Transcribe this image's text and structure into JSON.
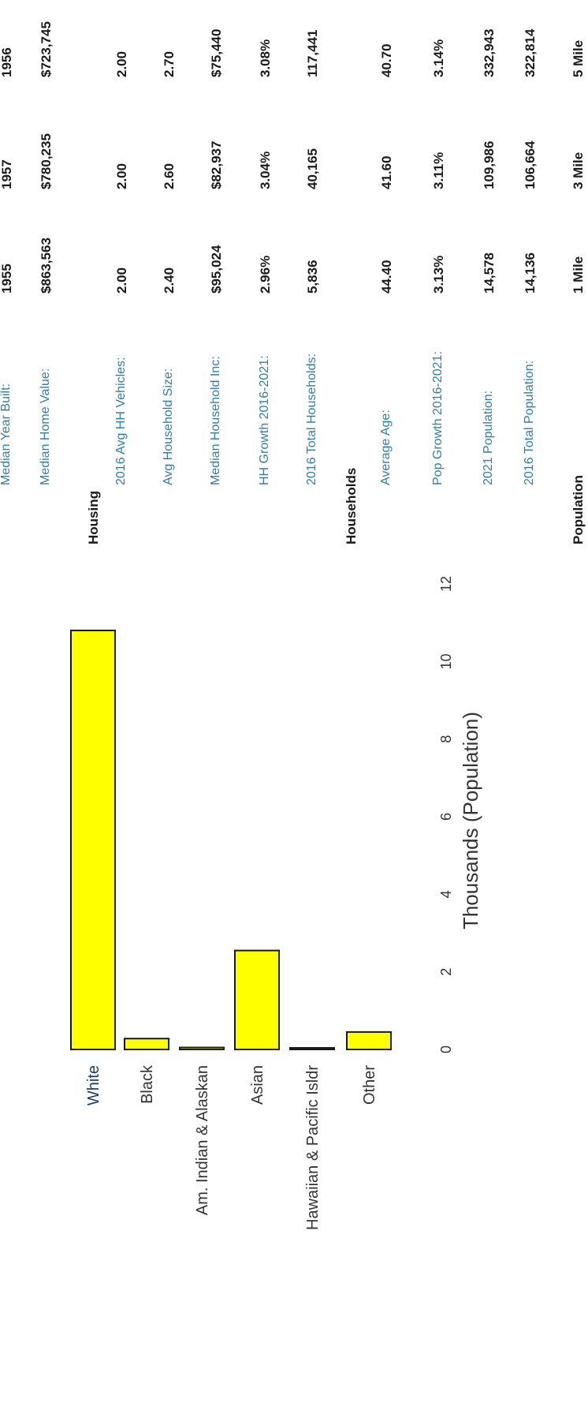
{
  "chart_data": {
    "type": "bar",
    "orientation": "horizontal",
    "categories": [
      "White",
      "Black",
      "Am. Indian & Alaskan",
      "Asian",
      "Hawaiian & Pacific Isldr",
      "Other"
    ],
    "values": [
      10.8,
      0.28,
      0.05,
      2.55,
      0.03,
      0.45
    ],
    "xlabel": "Thousands (Population)",
    "xlim": [
      0,
      12
    ],
    "xticks": [
      "0",
      "2",
      "4",
      "6",
      "8",
      "10",
      "12"
    ],
    "bar_color": "#ffff00",
    "grid": false
  },
  "stats": {
    "columns": [
      "1 Mile",
      "3 Mile",
      "5 Mile"
    ],
    "sections": [
      {
        "title": "Population",
        "rows": [
          {
            "label": "2016 Total Population:",
            "values": [
              "14,136",
              "106,664",
              "322,814"
            ]
          },
          {
            "label": "2021 Population:",
            "values": [
              "14,578",
              "109,986",
              "332,943"
            ]
          },
          {
            "label": "Pop Growth 2016-2021:",
            "values": [
              "3.13%",
              "3.11%",
              "3.14%"
            ]
          },
          {
            "label": "Average Age:",
            "values": [
              "44.40",
              "41.60",
              "40.70"
            ]
          }
        ]
      },
      {
        "title": "Households",
        "rows": [
          {
            "label": "2016 Total Households:",
            "values": [
              "5,836",
              "40,165",
              "117,441"
            ]
          },
          {
            "label": "HH Growth 2016-2021:",
            "values": [
              "2.96%",
              "3.04%",
              "3.08%"
            ]
          },
          {
            "label": "Median Household Inc:",
            "values": [
              "$95,024",
              "$82,937",
              "$75,440"
            ]
          },
          {
            "label": "Avg Household Size:",
            "values": [
              "2.40",
              "2.60",
              "2.70"
            ]
          },
          {
            "label": "2016 Avg HH Vehicles:",
            "values": [
              "2.00",
              "2.00",
              "2.00"
            ]
          }
        ]
      },
      {
        "title": "Housing",
        "rows": [
          {
            "label": "Median Home Value:",
            "values": [
              "$863,563",
              "$780,235",
              "$723,745"
            ]
          },
          {
            "label": "Median Year Built:",
            "values": [
              "1955",
              "1957",
              "1956"
            ]
          }
        ]
      }
    ]
  },
  "colors": {
    "label_blue": "#2e7fa8",
    "text_dark": "#1a1a1a",
    "bar_yellow": "#ffff00"
  }
}
